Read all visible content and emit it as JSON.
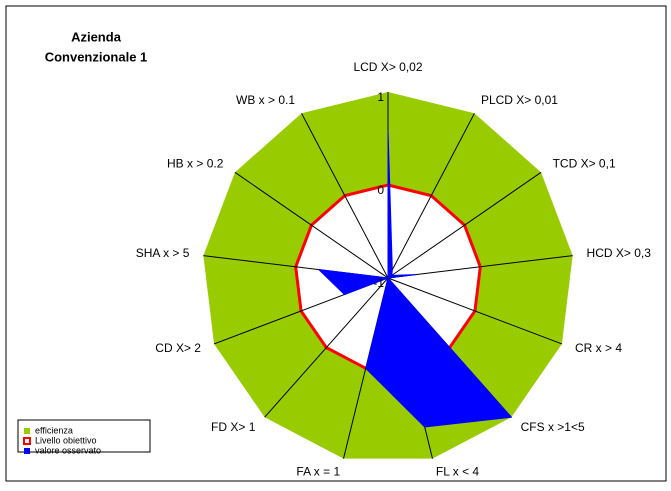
{
  "chart_data": {
    "type": "radar",
    "title_lines": [
      "Azienda",
      "Convenzionale 1"
    ],
    "categories": [
      "LCD X> 0,02",
      "PLCD X> 0,01",
      "TCD X> 0,1",
      "HCD X> 0,3",
      "CR x > 4",
      "CFS x >1<5",
      "FL x < 4",
      "FA x = 1",
      "FD X> 1",
      "CD X> 2",
      "SHA x > 5",
      "HB x > 0.2",
      "WB x > 0.1"
    ],
    "series": [
      {
        "name": "efficienza",
        "color": "#99cc00",
        "values": [
          1,
          1,
          1,
          1,
          1,
          1,
          1,
          1,
          1,
          1,
          1,
          1,
          1
        ]
      },
      {
        "name": "Livello obiettivo",
        "color": "#ff0000",
        "values": [
          0,
          0,
          0,
          0,
          0,
          0,
          0,
          0,
          0,
          0,
          0,
          0,
          0
        ]
      },
      {
        "name": "valore osservato",
        "color": "#0000ff",
        "values": [
          0.6,
          -0.9,
          -0.95,
          -0.7,
          -1,
          1,
          0.65,
          0,
          -1,
          -0.5,
          -0.25,
          -1,
          -1
        ]
      }
    ],
    "ylim": [
      -1,
      1
    ],
    "yticks": [
      -1,
      0,
      1
    ]
  }
}
